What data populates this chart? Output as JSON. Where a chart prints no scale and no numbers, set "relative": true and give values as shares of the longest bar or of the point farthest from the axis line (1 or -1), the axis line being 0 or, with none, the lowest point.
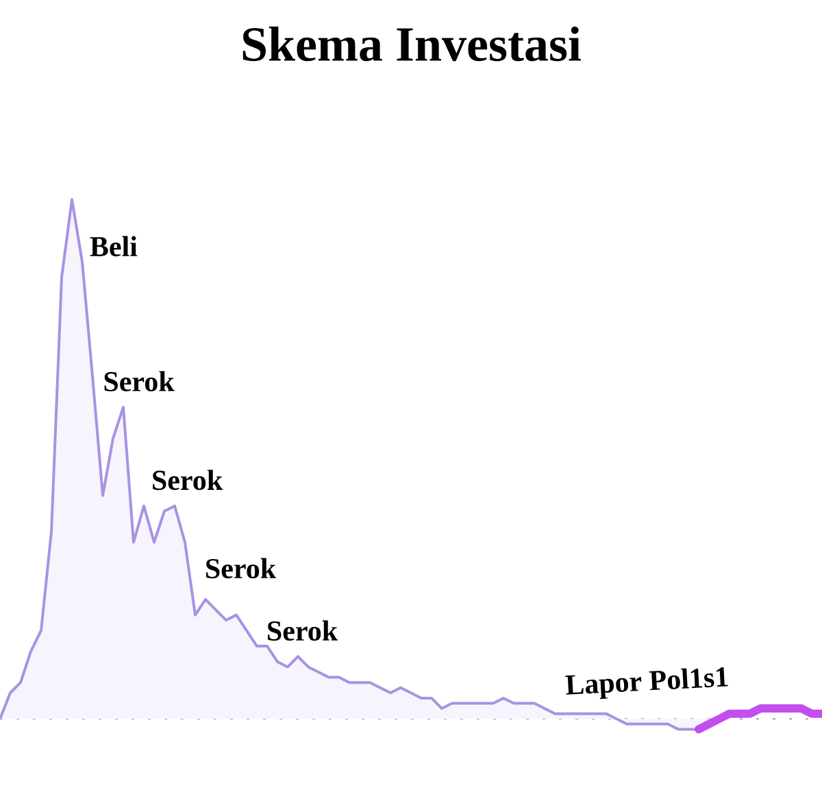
{
  "chart_data": {
    "type": "area",
    "title": "Skema Investasi",
    "relative": true,
    "categories": [
      null,
      null,
      null,
      null,
      null,
      null,
      null,
      null,
      null,
      null,
      null,
      null,
      null,
      null,
      null,
      null,
      null,
      null,
      null,
      null,
      null,
      null,
      null,
      null,
      null,
      null,
      null,
      null,
      null,
      null,
      null,
      null,
      null,
      null,
      null,
      null,
      null,
      null,
      null,
      null,
      null,
      null,
      null,
      null,
      null,
      null,
      null,
      null,
      null,
      null,
      null,
      null,
      null,
      null,
      null,
      null,
      null,
      null,
      null,
      null,
      null,
      null,
      null,
      null,
      null,
      null,
      null,
      null,
      null,
      null,
      null,
      null,
      null,
      null,
      null,
      null,
      null,
      null,
      null,
      null,
      null
    ],
    "series": [
      {
        "color": "#a992e2",
        "values": [
          0.0,
          0.05,
          0.07,
          0.13,
          0.17,
          0.36,
          0.85,
          1.0,
          0.88,
          0.66,
          0.43,
          0.54,
          0.6,
          0.34,
          0.41,
          0.34,
          0.4,
          0.41,
          0.34,
          0.2,
          0.23,
          0.21,
          0.19,
          0.2,
          0.17,
          0.14,
          0.14,
          0.11,
          0.1,
          0.12,
          0.1,
          0.09,
          0.08,
          0.08,
          0.07,
          0.07,
          0.07,
          0.06,
          0.05,
          0.06,
          0.05,
          0.04,
          0.04,
          0.02,
          0.03,
          0.03,
          0.03,
          0.03,
          0.03,
          0.04,
          0.03,
          0.03,
          0.03,
          0.02,
          0.01,
          0.01,
          0.01,
          0.01,
          0.01,
          0.01,
          0.0,
          -0.01,
          -0.01,
          -0.01,
          -0.01,
          -0.01,
          -0.02,
          -0.02,
          -0.02,
          -0.01,
          null,
          null,
          null,
          null,
          null,
          null,
          null,
          null,
          null,
          null,
          null
        ]
      },
      {
        "type": "line",
        "color": "#c24ef0",
        "values": [
          null,
          null,
          null,
          null,
          null,
          null,
          null,
          null,
          null,
          null,
          null,
          null,
          null,
          null,
          null,
          null,
          null,
          null,
          null,
          null,
          null,
          null,
          null,
          null,
          null,
          null,
          null,
          null,
          null,
          null,
          null,
          null,
          null,
          null,
          null,
          null,
          null,
          null,
          null,
          null,
          null,
          null,
          null,
          null,
          null,
          null,
          null,
          null,
          null,
          null,
          null,
          null,
          null,
          null,
          null,
          null,
          null,
          null,
          null,
          null,
          null,
          null,
          null,
          null,
          null,
          null,
          null,
          null,
          -0.02,
          -0.01,
          0.0,
          0.01,
          0.01,
          0.01,
          0.02,
          0.02,
          0.02,
          0.02,
          0.02,
          0.01,
          0.01
        ]
      }
    ],
    "ref_lines": [
      {
        "axis": "y",
        "value": 0,
        "color": "#b2b2b2",
        "line_style": "dotted"
      }
    ],
    "annotations": [
      "Beli",
      "Serok",
      "Serok",
      "Serok",
      "Serok",
      "Lapor Pol1s1"
    ]
  }
}
